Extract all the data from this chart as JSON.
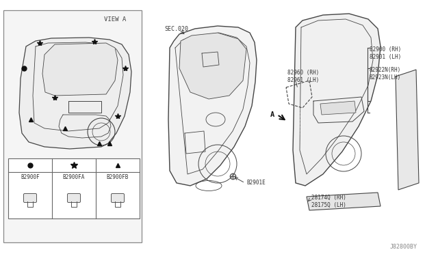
{
  "bg_color": "#ffffff",
  "line_color": "#444444",
  "text_color": "#333333",
  "light_gray": "#d8d8d8",
  "labels": {
    "view_a": "VIEW A",
    "sec_020": "SEC.020",
    "b2901e": "B2901E",
    "b82900": "82900 (RH)\n82901 (LH)",
    "b82960": "82960 (RH)\n82961 (LH)",
    "b82922": "82922N(RH)\n82923N(LH)",
    "b28174": "28174Q (RH)\n28175Q (LH)",
    "j82800by": "J82800BY",
    "b2900f": "B2900F",
    "b2900fa": "B2900FA",
    "b2900fb": "B2900FB",
    "a_label": "A"
  },
  "fig_width": 6.4,
  "fig_height": 3.72,
  "dpi": 100
}
